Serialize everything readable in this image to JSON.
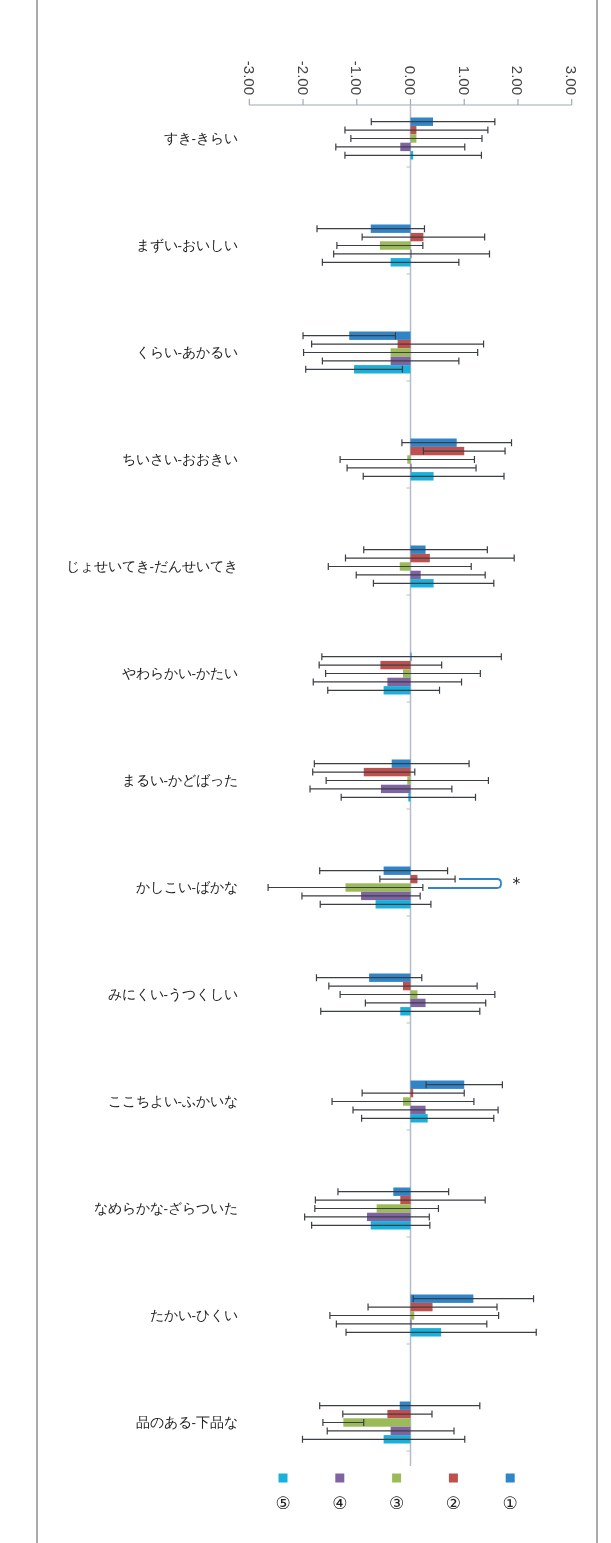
{
  "chart_data": {
    "type": "bar",
    "orientation": "horizontal",
    "categories": [
      "すき-きらい",
      "まずい-おいしい",
      "くらい-あかるい",
      "ちいさい-おおきい",
      "じょせいてき-だんせいてき",
      "やわらかい-かたい",
      "まるい-かどばった",
      "かしこい-ばかな",
      "みにくい-うつくしい",
      "ここちよい-ふかいな",
      "なめらかな-ざらついた",
      "たかい-ひくい",
      "品のある-下品な"
    ],
    "series": [
      {
        "name": "①",
        "color": "#3085c9",
        "values": [
          0.42,
          -0.74,
          -1.14,
          0.86,
          0.28,
          0.02,
          -0.35,
          -0.5,
          -0.77,
          1.0,
          -0.32,
          1.17,
          -0.2
        ],
        "errors": [
          1.15,
          1.0,
          0.86,
          1.02,
          1.15,
          1.67,
          1.44,
          1.19,
          0.98,
          0.71,
          1.03,
          1.12,
          1.49
        ]
      },
      {
        "name": "②",
        "color": "#c0504d",
        "values": [
          0.11,
          0.24,
          -0.24,
          1.0,
          0.36,
          -0.56,
          -0.87,
          0.13,
          -0.14,
          0.05,
          -0.19,
          0.41,
          -0.43
        ],
        "errors": [
          1.33,
          1.14,
          1.6,
          0.76,
          1.57,
          1.14,
          0.95,
          0.7,
          1.38,
          0.95,
          1.58,
          1.2,
          0.83
        ]
      },
      {
        "name": "③",
        "color": "#9bbb59",
        "values": [
          0.11,
          -0.57,
          -0.37,
          -0.06,
          -0.2,
          -0.14,
          -0.06,
          -1.21,
          0.13,
          -0.14,
          -0.63,
          0.07,
          -1.25
        ],
        "errors": [
          1.22,
          0.8,
          1.62,
          1.25,
          1.33,
          1.44,
          1.51,
          1.44,
          1.44,
          1.32,
          1.15,
          1.57,
          0.38
        ]
      },
      {
        "name": "④",
        "color": "#8064a2",
        "values": [
          -0.19,
          0.02,
          -0.37,
          0.02,
          0.19,
          -0.43,
          -0.55,
          -0.92,
          0.28,
          0.28,
          -0.81,
          0.02,
          -0.37
        ],
        "errors": [
          1.2,
          1.45,
          1.27,
          1.2,
          1.2,
          1.38,
          1.32,
          1.1,
          1.12,
          1.35,
          1.16,
          1.4,
          1.18
        ]
      },
      {
        "name": "⑤",
        "color": "#19b0dc",
        "values": [
          0.05,
          -0.37,
          -1.05,
          0.43,
          0.43,
          -0.5,
          -0.04,
          -0.65,
          -0.19,
          0.32,
          -0.74,
          0.57,
          -0.5
        ],
        "errors": [
          1.27,
          1.27,
          0.9,
          1.31,
          1.12,
          1.04,
          1.25,
          1.03,
          1.48,
          1.23,
          1.1,
          1.77,
          1.51
        ]
      }
    ],
    "xlim": [
      -3,
      3
    ],
    "xticks": [
      {
        "value": -3,
        "label": "-3.00"
      },
      {
        "value": -2,
        "label": "-2.00"
      },
      {
        "value": -1,
        "label": "-1.00"
      },
      {
        "value": 0,
        "label": "0.00"
      },
      {
        "value": 1,
        "label": "1.00"
      },
      {
        "value": 2,
        "label": "2.00"
      },
      {
        "value": 3,
        "label": "3.00"
      }
    ],
    "legend": "bottom",
    "annotations": [
      "＊"
    ]
  }
}
